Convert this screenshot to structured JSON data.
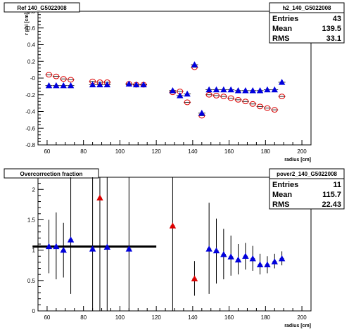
{
  "chart_data": [
    {
      "type": "scatter",
      "title": "Ref 140_G5022008",
      "xlabel": "radius [cm]",
      "ylabel": "r phi [cm]",
      "xlim": [
        55,
        205
      ],
      "ylim": [
        -0.8,
        0.8
      ],
      "xticks": [
        60,
        80,
        100,
        120,
        140,
        160,
        180,
        200
      ],
      "yticks": [
        -0.8,
        -0.6,
        -0.4,
        -0.2,
        0,
        0.2,
        0.4,
        0.6,
        0.8
      ],
      "ytick_labels": [
        "-0.8",
        "-0.6",
        "-0.4",
        "-0.2",
        "-0",
        "0.2",
        "0.4",
        "0.6",
        "0.8"
      ],
      "stats": {
        "name": "h2_140_G5022008",
        "rows": [
          {
            "label": "Entries",
            "value": "43"
          },
          {
            "label": "Mean",
            "value": "139.5"
          },
          {
            "label": "RMS",
            "value": "33.1"
          }
        ]
      },
      "series": [
        {
          "marker": "open-circle",
          "color": "#dd0000",
          "x": [
            61,
            65,
            69,
            73,
            85,
            89,
            93,
            105,
            109,
            113,
            129,
            133,
            137,
            141,
            145,
            149,
            153,
            157,
            161,
            165,
            169,
            173,
            177,
            181,
            185,
            189
          ],
          "y": [
            0.04,
            0.02,
            -0.01,
            -0.02,
            -0.04,
            -0.05,
            -0.05,
            -0.07,
            -0.08,
            -0.08,
            -0.17,
            -0.16,
            -0.29,
            0.13,
            -0.45,
            -0.2,
            -0.21,
            -0.22,
            -0.24,
            -0.26,
            -0.28,
            -0.31,
            -0.34,
            -0.36,
            -0.38,
            -0.22
          ]
        },
        {
          "marker": "filled-triangle",
          "color": "#0000dd",
          "x": [
            61,
            65,
            69,
            73,
            85,
            89,
            93,
            105,
            109,
            113,
            129,
            133,
            137,
            141,
            145,
            149,
            153,
            157,
            161,
            165,
            169,
            173,
            177,
            181,
            185,
            189
          ],
          "y": [
            -0.09,
            -0.09,
            -0.09,
            -0.09,
            -0.08,
            -0.08,
            -0.08,
            -0.07,
            -0.08,
            -0.08,
            -0.15,
            -0.21,
            -0.19,
            0.16,
            -0.42,
            -0.14,
            -0.14,
            -0.14,
            -0.14,
            -0.15,
            -0.15,
            -0.15,
            -0.15,
            -0.14,
            -0.14,
            -0.05
          ]
        }
      ]
    },
    {
      "type": "scatter",
      "title": "Overcorrection fraction",
      "xlabel": "radius [cm]",
      "ylabel": "",
      "xlim": [
        55,
        205
      ],
      "ylim": [
        0,
        2.2
      ],
      "xticks": [
        60,
        80,
        100,
        120,
        140,
        160,
        180,
        200
      ],
      "yticks": [
        0,
        0.5,
        1,
        1.5,
        2
      ],
      "ytick_labels": [
        "0",
        "0.5",
        "1",
        "1.5",
        "2"
      ],
      "stats": {
        "name": "pover2_140_G5022008",
        "rows": [
          {
            "label": "Entries",
            "value": "11"
          },
          {
            "label": "Mean",
            "value": "115.7"
          },
          {
            "label": "RMS",
            "value": "22.43"
          }
        ]
      },
      "reference_line": {
        "x_from": 52,
        "x_to": 120,
        "y": 1.06
      },
      "series": [
        {
          "marker": "filled-triangle",
          "color": "#0000dd",
          "points": [
            {
              "x": 61,
              "y": 1.06,
              "lo": 0.62,
              "hi": 1.5
            },
            {
              "x": 65,
              "y": 1.06,
              "lo": 0.52,
              "hi": 1.62
            },
            {
              "x": 69,
              "y": 1.0,
              "lo": 0.55,
              "hi": 1.45
            },
            {
              "x": 73,
              "y": 1.17,
              "lo": 0.28,
              "hi": 2.2
            },
            {
              "x": 85,
              "y": 1.02,
              "lo": 0,
              "hi": 2.2
            },
            {
              "x": 93,
              "y": 1.05,
              "lo": 0,
              "hi": 2.2
            },
            {
              "x": 105,
              "y": 1.02,
              "lo": 0,
              "hi": 2.2
            },
            {
              "x": 149,
              "y": 1.02,
              "lo": 0.28,
              "hi": 1.78
            },
            {
              "x": 153,
              "y": 0.99,
              "lo": 0.45,
              "hi": 1.52
            },
            {
              "x": 157,
              "y": 0.93,
              "lo": 0.52,
              "hi": 1.35
            },
            {
              "x": 161,
              "y": 0.89,
              "lo": 0.58,
              "hi": 1.24
            },
            {
              "x": 165,
              "y": 0.84,
              "lo": 0.6,
              "hi": 1.1
            },
            {
              "x": 169,
              "y": 0.9,
              "lo": 0.68,
              "hi": 1.12
            },
            {
              "x": 173,
              "y": 0.86,
              "lo": 0.66,
              "hi": 1.07
            },
            {
              "x": 177,
              "y": 0.76,
              "lo": 0.6,
              "hi": 0.94
            },
            {
              "x": 181,
              "y": 0.76,
              "lo": 0.62,
              "hi": 0.9
            },
            {
              "x": 185,
              "y": 0.81,
              "lo": 0.7,
              "hi": 0.94
            },
            {
              "x": 189,
              "y": 0.86,
              "lo": 0.75,
              "hi": 0.98
            }
          ]
        },
        {
          "marker": "filled-triangle",
          "color": "#dd0000",
          "points": [
            {
              "x": 89,
              "y": 1.86,
              "lo": 0,
              "hi": 2.2
            },
            {
              "x": 129,
              "y": 1.4,
              "lo": 0,
              "hi": 2.2
            },
            {
              "x": 141,
              "y": 0.53,
              "lo": 0.25,
              "hi": 0.82
            }
          ]
        }
      ]
    }
  ]
}
